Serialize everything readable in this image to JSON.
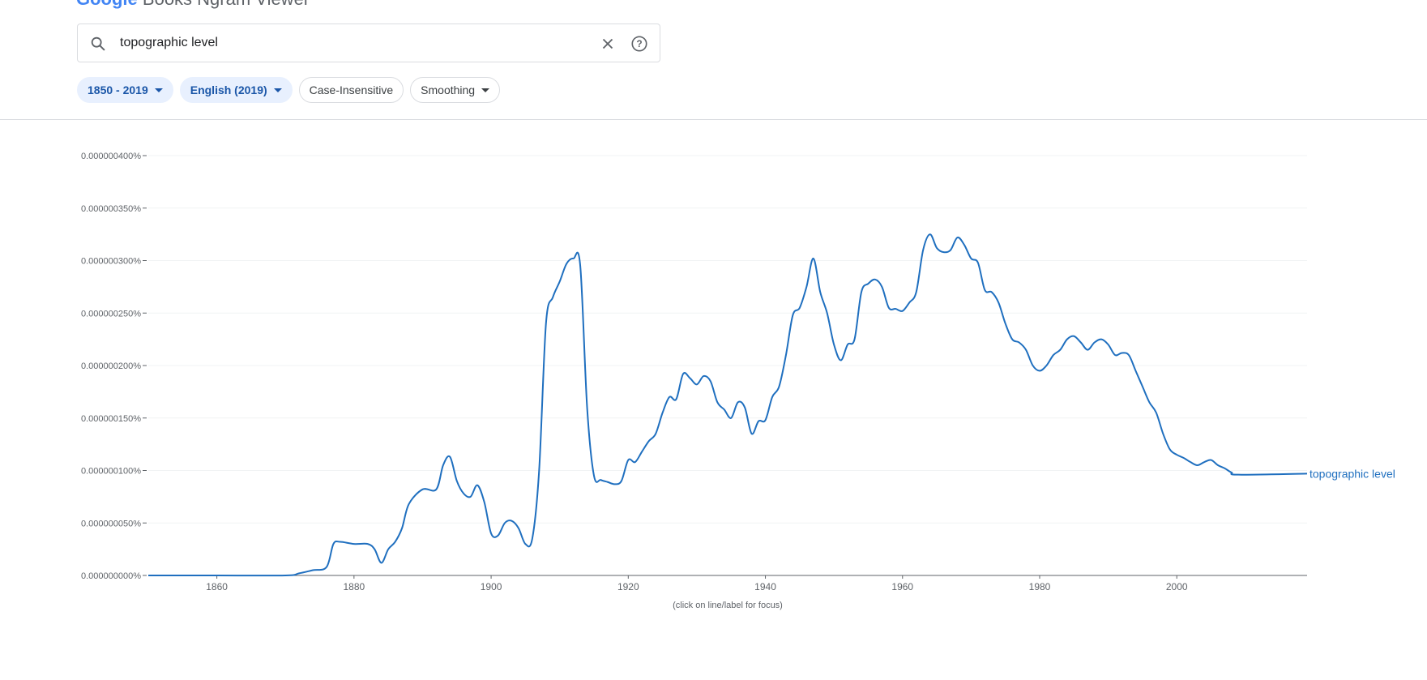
{
  "header": {
    "logo_text": "Google",
    "app_title": "Books Ngram Viewer"
  },
  "search": {
    "value": "topographic level"
  },
  "chips": [
    {
      "label": "1850 - 2019",
      "style": "filled",
      "dropdown": true
    },
    {
      "label": "English (2019)",
      "style": "filled",
      "dropdown": true
    },
    {
      "label": "Case-Insensitive",
      "style": "outlined",
      "dropdown": false
    },
    {
      "label": "Smoothing",
      "style": "outlined",
      "dropdown": true
    }
  ],
  "chart_data": {
    "type": "line",
    "xlim": [
      1850,
      2019
    ],
    "ylim": [
      0,
      4e-09
    ],
    "x_ticks": [
      1860,
      1880,
      1900,
      1920,
      1940,
      1960,
      1980,
      2000
    ],
    "y_ticks": [
      {
        "value": 0,
        "label": "0.000000000%"
      },
      {
        "value": 5e-10,
        "label": "0.000000050%"
      },
      {
        "value": 1e-09,
        "label": "0.000000100%"
      },
      {
        "value": 1.5e-09,
        "label": "0.000000150%"
      },
      {
        "value": 2e-09,
        "label": "0.000000200%"
      },
      {
        "value": 2.5e-09,
        "label": "0.000000250%"
      },
      {
        "value": 3e-09,
        "label": "0.000000300%"
      },
      {
        "value": 3.5e-09,
        "label": "0.000000350%"
      },
      {
        "value": 4e-09,
        "label": "0.000000400%"
      }
    ],
    "grid": true,
    "note": "(click on line/label for focus)",
    "series": [
      {
        "name": "topographic level",
        "color": "#1f6fbf",
        "points": [
          [
            1850,
            0
          ],
          [
            1860,
            0
          ],
          [
            1870,
            0
          ],
          [
            1872,
            2e-11
          ],
          [
            1874,
            5e-11
          ],
          [
            1876,
            8e-11
          ],
          [
            1877,
            3e-10
          ],
          [
            1878,
            3.2e-10
          ],
          [
            1880,
            3e-10
          ],
          [
            1882,
            3e-10
          ],
          [
            1883,
            2.5e-10
          ],
          [
            1884,
            1.2e-10
          ],
          [
            1885,
            2.5e-10
          ],
          [
            1886,
            3.2e-10
          ],
          [
            1887,
            4.5e-10
          ],
          [
            1888,
            6.8e-10
          ],
          [
            1890,
            8.2e-10
          ],
          [
            1892,
            8.2e-10
          ],
          [
            1893,
            1.05e-09
          ],
          [
            1894,
            1.13e-09
          ],
          [
            1895,
            9e-10
          ],
          [
            1896,
            7.8e-10
          ],
          [
            1897,
            7.5e-10
          ],
          [
            1898,
            8.6e-10
          ],
          [
            1899,
            7e-10
          ],
          [
            1900,
            4e-10
          ],
          [
            1901,
            3.8e-10
          ],
          [
            1902,
            5e-10
          ],
          [
            1903,
            5.2e-10
          ],
          [
            1904,
            4.5e-10
          ],
          [
            1905,
            3e-10
          ],
          [
            1906,
            3.5e-10
          ],
          [
            1907,
            1e-09
          ],
          [
            1908,
            2.4e-09
          ],
          [
            1909,
            2.65e-09
          ],
          [
            1910,
            2.8e-09
          ],
          [
            1911,
            2.97e-09
          ],
          [
            1912,
            3.02e-09
          ],
          [
            1913,
            2.95e-09
          ],
          [
            1914,
            1.6e-09
          ],
          [
            1915,
            9.5e-10
          ],
          [
            1916,
            9.1e-10
          ],
          [
            1917,
            8.9e-10
          ],
          [
            1918,
            8.7e-10
          ],
          [
            1919,
            9e-10
          ],
          [
            1920,
            1.1e-09
          ],
          [
            1921,
            1.08e-09
          ],
          [
            1922,
            1.18e-09
          ],
          [
            1923,
            1.28e-09
          ],
          [
            1924,
            1.35e-09
          ],
          [
            1925,
            1.55e-09
          ],
          [
            1926,
            1.7e-09
          ],
          [
            1927,
            1.68e-09
          ],
          [
            1928,
            1.92e-09
          ],
          [
            1929,
            1.88e-09
          ],
          [
            1930,
            1.82e-09
          ],
          [
            1931,
            1.9e-09
          ],
          [
            1932,
            1.85e-09
          ],
          [
            1933,
            1.65e-09
          ],
          [
            1934,
            1.58e-09
          ],
          [
            1935,
            1.5e-09
          ],
          [
            1936,
            1.65e-09
          ],
          [
            1937,
            1.6e-09
          ],
          [
            1938,
            1.35e-09
          ],
          [
            1939,
            1.47e-09
          ],
          [
            1940,
            1.48e-09
          ],
          [
            1941,
            1.7e-09
          ],
          [
            1942,
            1.8e-09
          ],
          [
            1943,
            2.1e-09
          ],
          [
            1944,
            2.48e-09
          ],
          [
            1945,
            2.55e-09
          ],
          [
            1946,
            2.75e-09
          ],
          [
            1947,
            3.02e-09
          ],
          [
            1948,
            2.7e-09
          ],
          [
            1949,
            2.5e-09
          ],
          [
            1950,
            2.2e-09
          ],
          [
            1951,
            2.05e-09
          ],
          [
            1952,
            2.2e-09
          ],
          [
            1953,
            2.25e-09
          ],
          [
            1954,
            2.7e-09
          ],
          [
            1955,
            2.78e-09
          ],
          [
            1956,
            2.82e-09
          ],
          [
            1957,
            2.75e-09
          ],
          [
            1958,
            2.55e-09
          ],
          [
            1959,
            2.54e-09
          ],
          [
            1960,
            2.52e-09
          ],
          [
            1961,
            2.6e-09
          ],
          [
            1962,
            2.7e-09
          ],
          [
            1963,
            3.1e-09
          ],
          [
            1964,
            3.25e-09
          ],
          [
            1965,
            3.12e-09
          ],
          [
            1966,
            3.08e-09
          ],
          [
            1967,
            3.1e-09
          ],
          [
            1968,
            3.22e-09
          ],
          [
            1969,
            3.15e-09
          ],
          [
            1970,
            3.02e-09
          ],
          [
            1971,
            2.98e-09
          ],
          [
            1972,
            2.72e-09
          ],
          [
            1973,
            2.7e-09
          ],
          [
            1974,
            2.6e-09
          ],
          [
            1975,
            2.4e-09
          ],
          [
            1976,
            2.25e-09
          ],
          [
            1977,
            2.22e-09
          ],
          [
            1978,
            2.15e-09
          ],
          [
            1979,
            2e-09
          ],
          [
            1980,
            1.95e-09
          ],
          [
            1981,
            2e-09
          ],
          [
            1982,
            2.1e-09
          ],
          [
            1983,
            2.15e-09
          ],
          [
            1984,
            2.25e-09
          ],
          [
            1985,
            2.28e-09
          ],
          [
            1986,
            2.22e-09
          ],
          [
            1987,
            2.15e-09
          ],
          [
            1988,
            2.22e-09
          ],
          [
            1989,
            2.25e-09
          ],
          [
            1990,
            2.2e-09
          ],
          [
            1991,
            2.1e-09
          ],
          [
            1992,
            2.12e-09
          ],
          [
            1993,
            2.1e-09
          ],
          [
            1994,
            1.95e-09
          ],
          [
            1995,
            1.8e-09
          ],
          [
            1996,
            1.65e-09
          ],
          [
            1997,
            1.55e-09
          ],
          [
            1998,
            1.35e-09
          ],
          [
            1999,
            1.2e-09
          ],
          [
            2000,
            1.15e-09
          ],
          [
            2001,
            1.12e-09
          ],
          [
            2002,
            1.08e-09
          ],
          [
            2003,
            1.05e-09
          ],
          [
            2004,
            1.08e-09
          ],
          [
            2005,
            1.1e-09
          ],
          [
            2006,
            1.05e-09
          ],
          [
            2007,
            1.02e-09
          ],
          [
            2008,
            9.8e-10
          ],
          [
            2009,
            9.6e-10
          ],
          [
            2019,
            9.7e-10
          ]
        ]
      }
    ]
  }
}
